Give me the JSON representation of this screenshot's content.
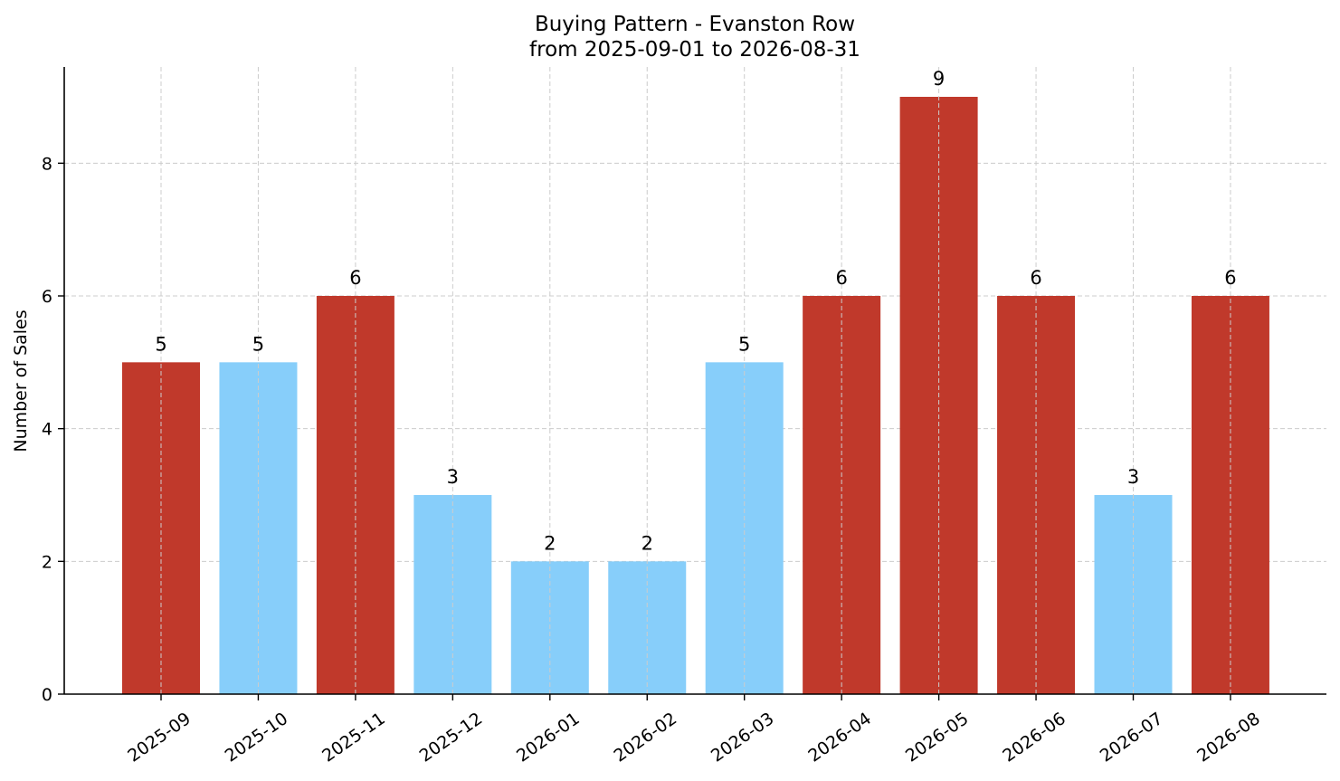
{
  "chart_data": {
    "type": "bar",
    "title": "Buying Pattern - Evanston Row",
    "subtitle": "from 2025-09-01 to 2026-08-31",
    "xlabel": "",
    "ylabel": "Number of Sales",
    "ylim": [
      0,
      9.45
    ],
    "yticks": [
      0,
      2,
      4,
      6,
      8
    ],
    "grid": true,
    "categories": [
      "2025-09",
      "2025-10",
      "2025-11",
      "2025-12",
      "2026-01",
      "2026-02",
      "2026-03",
      "2026-04",
      "2026-05",
      "2026-06",
      "2026-07",
      "2026-08"
    ],
    "values": [
      5,
      5,
      6,
      3,
      2,
      2,
      5,
      6,
      9,
      6,
      3,
      6
    ],
    "colors": [
      "#c0392b",
      "#87cefa",
      "#c0392b",
      "#87cefa",
      "#87cefa",
      "#87cefa",
      "#87cefa",
      "#c0392b",
      "#c0392b",
      "#c0392b",
      "#87cefa",
      "#c0392b"
    ],
    "data_labels": [
      "5",
      "5",
      "6",
      "3",
      "2",
      "2",
      "5",
      "6",
      "9",
      "6",
      "3",
      "6"
    ]
  }
}
